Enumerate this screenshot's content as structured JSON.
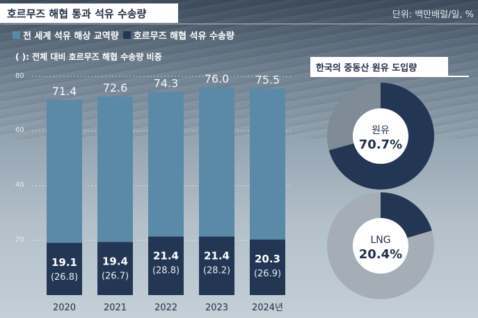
{
  "header": {
    "title": "호르무즈 해협 통과 석유 수송량",
    "unit": "단위: 백만배럴/일, %"
  },
  "legend": {
    "total_label": "전 세계 석유 해상 교역량",
    "hormuz_label": "호르무즈 해협 석유 수송량",
    "note": "( ): 전체 대비 호르무즈 해협 수송량 비중"
  },
  "colors": {
    "total": "#5b89a8",
    "hormuz": "#233754",
    "donut_bg": "#7f8b96",
    "donut_bg2": "#a5aeb7"
  },
  "chart_data": [
    {
      "type": "bar",
      "title": "호르무즈 해협 통과 석유 수송량",
      "categories": [
        "2020",
        "2021",
        "2022",
        "2023",
        "2024년"
      ],
      "series": [
        {
          "name": "전 세계 석유 해상 교역량",
          "values": [
            71.4,
            72.6,
            74.3,
            76.0,
            75.5
          ],
          "labels": [
            "71.4",
            "72.6",
            "74.3",
            "76.0",
            "75.5"
          ]
        },
        {
          "name": "호르무즈 해협 석유 수송량",
          "values": [
            19.1,
            19.4,
            21.4,
            21.4,
            20.3
          ],
          "labels": [
            "19.1",
            "19.4",
            "21.4",
            "21.4",
            "20.3"
          ],
          "shares": [
            "(26.8)",
            "(26.7)",
            "(28.8)",
            "(28.2)",
            "(26.9)"
          ]
        }
      ],
      "ylim": [
        0,
        80
      ],
      "yticks": [
        "20",
        "40",
        "60",
        "80"
      ],
      "unit": "단위: 백만배럴/일, %"
    },
    {
      "type": "pie",
      "title": "한국의 중동산 원유 도입량",
      "slices": [
        {
          "label": "원유",
          "value": 70.7,
          "value_label": "70.7%"
        },
        {
          "label": "LNG",
          "value": 20.4,
          "value_label": "20.4%"
        }
      ]
    }
  ]
}
